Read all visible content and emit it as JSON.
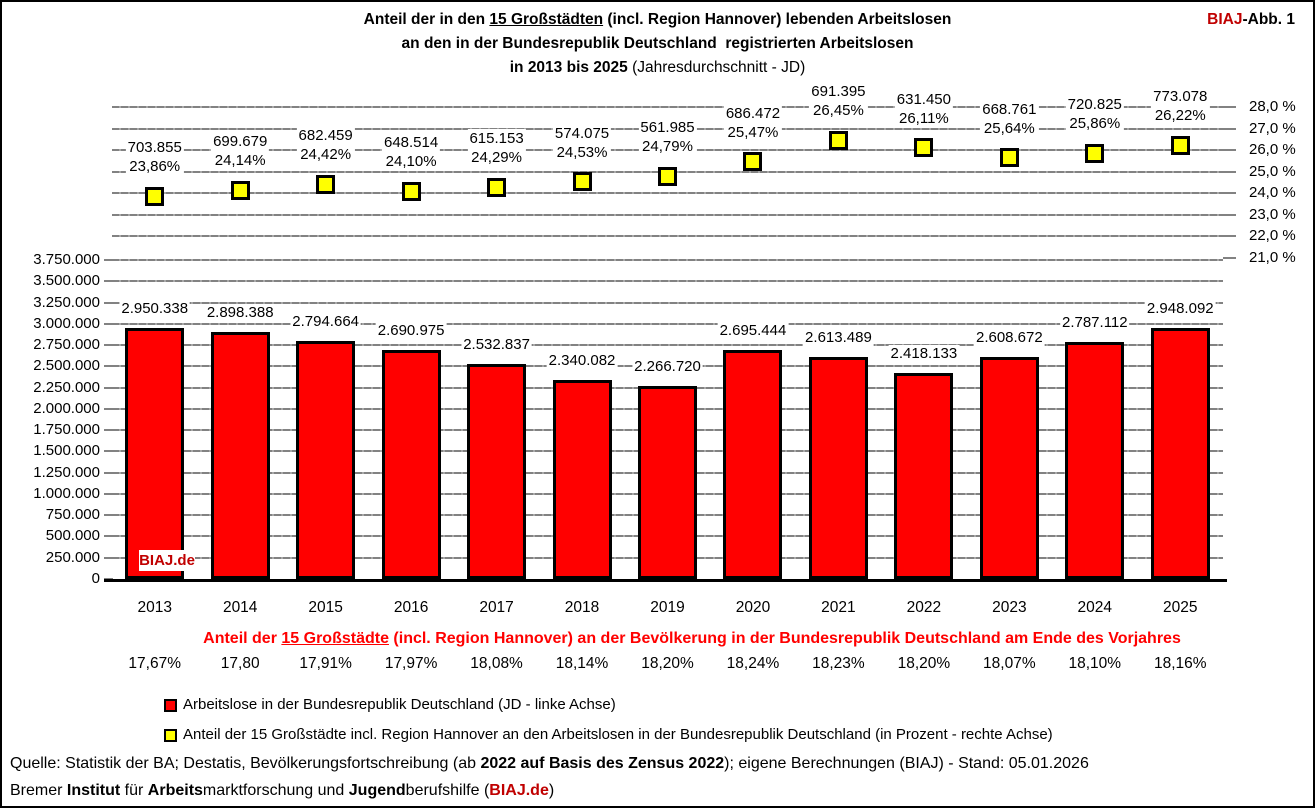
{
  "meta": {
    "figure_label_red": "BIAJ",
    "figure_label_rest": "-Abb. 1"
  },
  "title": {
    "line1_pre": "Anteil der in den ",
    "line1_underlined": "15 Großstädten",
    "line1_post": " (incl. Region Hannover) lebenden Arbeitslosen",
    "line2": "an den in der Bundesrepublik Deutschland  registrierten Arbeitslosen",
    "line3_bold": "in 2013 bis 2025",
    "line3_light": " (Jahresdurchschnitt - JD)"
  },
  "colors": {
    "bar_red": "#FF0000",
    "marker_yellow": "#FFFF00",
    "brand_dark_red": "#C00000",
    "subtitle_red": "#FF0000",
    "gridline_gray": "#828282"
  },
  "chart_data": {
    "type": "combo (bar + scatter-square markers)",
    "title": "Anteil der in den 15 Großstädten (incl. Region Hannover) lebenden Arbeitslosen an den in der Bundesrepublik Deutschland registrierten Arbeitslosen in 2013 bis 2025 (Jahresdurchschnitt - JD)",
    "categories": [
      "2013",
      "2014",
      "2015",
      "2016",
      "2017",
      "2018",
      "2019",
      "2020",
      "2021",
      "2022",
      "2023",
      "2024",
      "2025"
    ],
    "series": [
      {
        "name": "Arbeitslose in der Bundesrepublik Deutschland (JD - linke Achse)",
        "type": "bar",
        "axis": "left",
        "color": "#FF0000",
        "values": [
          2950338,
          2898388,
          2794664,
          2690975,
          2532837,
          2340082,
          2266720,
          2695444,
          2613489,
          2418133,
          2608672,
          2787112,
          2948092
        ],
        "labels": [
          "2.950.338",
          "2.898.388",
          "2.794.664",
          "2.690.975",
          "2.532.837",
          "2.340.082",
          "2.266.720",
          "2.695.444",
          "2.613.489",
          "2.418.133",
          "2.608.672",
          "2.787.112",
          "2.948.092"
        ]
      },
      {
        "name": "Anteil der 15 Großstädte incl. Region Hannover an den Arbeitslosen in der Bundesrepublik Deutschland (in Prozent - rechte Achse)",
        "type": "scatter",
        "axis": "right",
        "color": "#FFFF00",
        "values": [
          23.86,
          24.14,
          24.42,
          24.1,
          24.29,
          24.53,
          24.79,
          25.47,
          26.45,
          26.11,
          25.64,
          25.86,
          26.22
        ],
        "value_labels": [
          "703.855",
          "699.679",
          "682.459",
          "648.514",
          "615.153",
          "574.075",
          "561.985",
          "686.472",
          "691.395",
          "631.450",
          "668.761",
          "720.825",
          "773.078"
        ],
        "pct_labels": [
          "23,86%",
          "24,14%",
          "24,42%",
          "24,10%",
          "24,29%",
          "24,53%",
          "24,79%",
          "25,47%",
          "26,45%",
          "26,11%",
          "25,64%",
          "25,86%",
          "26,22%"
        ]
      }
    ],
    "left_axis": {
      "min": 0,
      "max": 3750000,
      "step": 250000,
      "tick_labels": [
        "0",
        "250.000",
        "500.000",
        "750.000",
        "1.000.000",
        "1.250.000",
        "1.500.000",
        "1.750.000",
        "2.000.000",
        "2.250.000",
        "2.500.000",
        "2.750.000",
        "3.000.000",
        "3.250.000",
        "3.500.000",
        "3.750.000"
      ]
    },
    "right_axis": {
      "min": 21,
      "max": 28,
      "step": 1,
      "tick_labels": [
        "21,0 %",
        "22,0 %",
        "23,0 %",
        "24,0 %",
        "25,0 %",
        "26,0 %",
        "27,0 %",
        "28,0 %"
      ]
    },
    "gridlines": true,
    "legend_position": "bottom-left",
    "annotations": [
      "BIAJ.de"
    ]
  },
  "watermark": "BIAJ.de",
  "population_row": {
    "title_pre": "Anteil der ",
    "title_underlined": "15 Großstädte",
    "title_post": " (incl. Region Hannover) an der Bevölkerung in der Bundesrepublik Deutschland am Ende des Vorjahres",
    "values": [
      "17,67%",
      "17,80",
      "17,91%",
      "17,97%",
      "18,08%",
      "18,14%",
      "18,20%",
      "18,24%",
      "18,23%",
      "18,20%",
      "18,07%",
      "18,10%",
      "18,16%"
    ]
  },
  "legend": {
    "items": [
      {
        "swatch": "red-square",
        "label": "Arbeitslose in der Bundesrepublik Deutschland (JD - linke Achse)"
      },
      {
        "swatch": "yellow-square",
        "label": "Anteil der 15 Großstädte incl. Region Hannover an den Arbeitslosen in der Bundesrepublik Deutschland (in Prozent - rechte Achse)"
      }
    ]
  },
  "source": {
    "line1_segments": [
      {
        "text": "Quelle: Statistik der BA; Destatis, Bevölkerungsfortschreibung (ab ",
        "bold": false
      },
      {
        "text": "2022 auf Basis des Zensus 2022",
        "bold": true
      },
      {
        "text": "); eigene Berechnungen (BIAJ) - Stand: 05.01.2026",
        "bold": false
      }
    ],
    "line2_segments": [
      {
        "text": "Bremer ",
        "bold": false
      },
      {
        "text": "Institut",
        "bold": true
      },
      {
        "text": " für ",
        "bold": false
      },
      {
        "text": "Arbeits",
        "bold": true
      },
      {
        "text": "marktforschung und ",
        "bold": false
      },
      {
        "text": "Jugend",
        "bold": true
      },
      {
        "text": "berufshilfe (",
        "bold": false
      },
      {
        "text": "BIAJ.de",
        "bold": true,
        "brand": true
      },
      {
        "text": ")",
        "bold": false
      }
    ]
  }
}
